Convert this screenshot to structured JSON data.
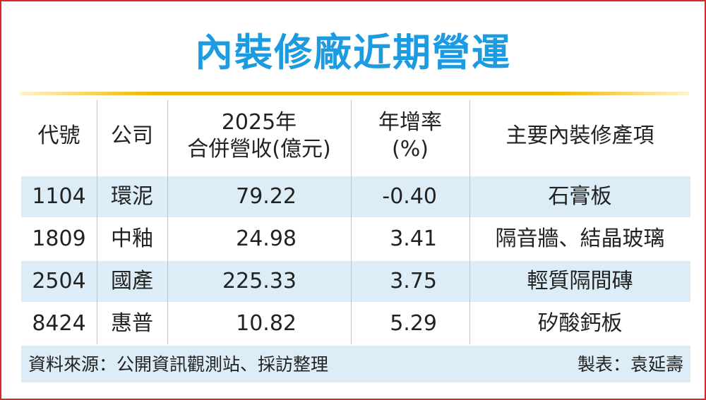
{
  "header": {
    "title": "內裝修廠近期營運"
  },
  "table": {
    "columns": [
      [
        "代號"
      ],
      [
        "公司"
      ],
      [
        "2025年",
        "合併營收(億元)"
      ],
      [
        "年增率",
        "(%)"
      ],
      [
        "主要內裝修產項"
      ]
    ],
    "rows": [
      [
        "1104",
        "環泥",
        "79.22",
        "-0.40",
        "石膏板"
      ],
      [
        "1809",
        "中釉",
        "24.98",
        "3.41",
        "隔音牆、結晶玻璃"
      ],
      [
        "2504",
        "國產",
        "225.33",
        "3.75",
        "輕質隔間磚"
      ],
      [
        "8424",
        "惠普",
        "10.82",
        "5.29",
        "矽酸鈣板"
      ]
    ]
  },
  "footer": {
    "source": "資料來源：公開資訊觀測站、採訪整理",
    "author": "製表：袁延壽"
  }
}
